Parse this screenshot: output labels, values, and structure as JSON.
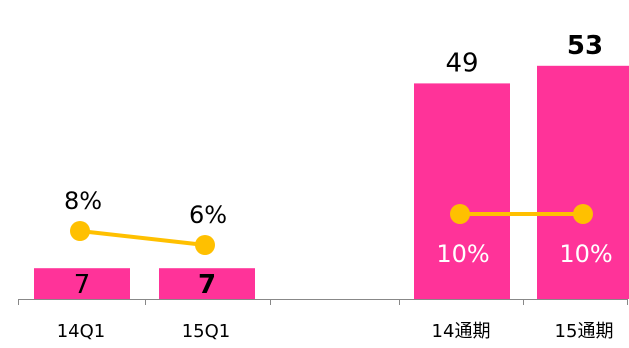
{
  "chart_data": {
    "type": "bar",
    "categories": [
      "14Q1",
      "15Q1",
      "14通期",
      "15通期"
    ],
    "series": [
      {
        "type": "bar",
        "values": [
          7,
          7,
          49,
          53
        ],
        "labels": [
          "7",
          "7",
          "49",
          "53"
        ]
      },
      {
        "type": "line",
        "segments": [
          {
            "categories": [
              "14Q1",
              "15Q1"
            ],
            "values": [
              8,
              6
            ],
            "labels": [
              "8%",
              "6%"
            ]
          },
          {
            "categories": [
              "14通期",
              "15通期"
            ],
            "values": [
              10,
              10
            ],
            "labels": [
              "10%",
              "10%"
            ]
          }
        ]
      }
    ],
    "highlighted_value_labels": [
      "15Q1",
      "15通期"
    ],
    "grid": false,
    "legend": "none"
  },
  "colors": {
    "bar": "#ff3399",
    "line": "#ffc000",
    "axis": "#888888"
  }
}
